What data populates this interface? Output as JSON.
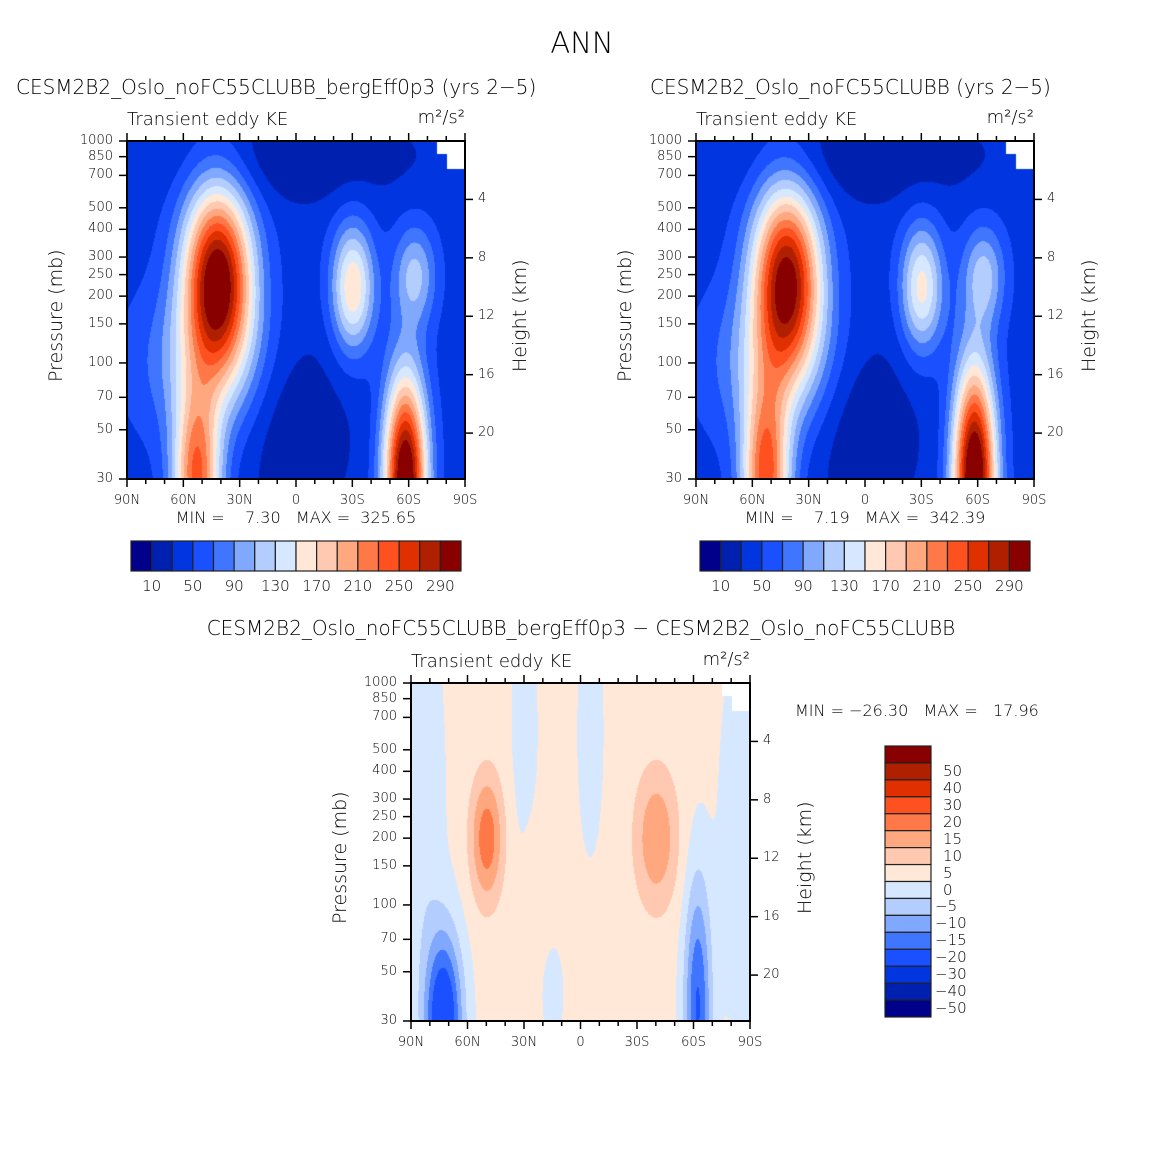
{
  "figure_title": "ANN",
  "chart_data": [
    {
      "type": "heatmap",
      "title": "CESM2B2_Oslo_noFC55CLUBB_bergEff0p3 (yrs 2−5)",
      "left_label": "Transient eddy KE",
      "units": "m²/s²",
      "ylabel": "Pressure (mb)",
      "y2label": "Height (km)",
      "x_ticks": [
        "90N",
        "60N",
        "30N",
        "0",
        "30S",
        "60S",
        "90S"
      ],
      "x_tick_values": [
        90,
        60,
        30,
        0,
        -30,
        -60,
        -90
      ],
      "y_ticks": [
        30,
        50,
        70,
        100,
        150,
        200,
        250,
        300,
        400,
        500,
        700,
        850,
        1000
      ],
      "y2_ticks": [
        4,
        8,
        12,
        16,
        20
      ],
      "ylim": [
        1000,
        30
      ],
      "xlim": [
        90,
        -90
      ],
      "min_max_text": "MIN =    7.30   MAX =  325.65",
      "levels": [
        10,
        30,
        50,
        70,
        90,
        110,
        130,
        150,
        170,
        190,
        210,
        230,
        250,
        270,
        290
      ],
      "colorbar_labels": [
        "10",
        "50",
        "90",
        "130",
        "170",
        "210",
        "250",
        "290"
      ],
      "colorbar_orientation": "horizontal",
      "base": 40,
      "features": [
        {
          "lat": 53,
          "p": 30,
          "amp": 190,
          "slat": 9,
          "slogp": 0.28
        },
        {
          "lat": -58,
          "p": 30,
          "amp": 290,
          "slat": 8,
          "slogp": 0.33
        },
        {
          "lat": 42,
          "p": 240,
          "amp": 270,
          "slat": 13,
          "slogp": 0.3
        },
        {
          "lat": -30,
          "p": 220,
          "amp": 130,
          "slat": 8,
          "slogp": 0.2
        },
        {
          "lat": -63,
          "p": 250,
          "amp": 75,
          "slat": 8,
          "slogp": 0.16
        },
        {
          "lat": 50,
          "p": 100,
          "amp": 55,
          "slat": 25,
          "slogp": 0.25
        },
        {
          "lat": 0,
          "p": 50,
          "amp": -30,
          "slat": 20,
          "slogp": 0.3
        },
        {
          "lat": 0,
          "p": 850,
          "amp": -28,
          "slat": 45,
          "slogp": 0.15
        }
      ]
    },
    {
      "type": "heatmap",
      "title": "CESM2B2_Oslo_noFC55CLUBB (yrs 2−5)",
      "left_label": "Transient eddy KE",
      "units": "m²/s²",
      "ylabel": "Pressure (mb)",
      "y2label": "Height (km)",
      "x_ticks": [
        "90N",
        "60N",
        "30N",
        "0",
        "30S",
        "60S",
        "90S"
      ],
      "x_tick_values": [
        90,
        60,
        30,
        0,
        -30,
        -60,
        -90
      ],
      "y_ticks": [
        30,
        50,
        70,
        100,
        150,
        200,
        250,
        300,
        400,
        500,
        700,
        850,
        1000
      ],
      "y2_ticks": [
        4,
        8,
        12,
        16,
        20
      ],
      "ylim": [
        1000,
        30
      ],
      "xlim": [
        90,
        -90
      ],
      "min_max_text": "MIN =    7.19   MAX =  342.39",
      "levels": [
        10,
        30,
        50,
        70,
        90,
        110,
        130,
        150,
        170,
        190,
        210,
        230,
        250,
        270,
        290
      ],
      "colorbar_labels": [
        "10",
        "50",
        "90",
        "130",
        "170",
        "210",
        "250",
        "290"
      ],
      "colorbar_orientation": "horizontal",
      "base": 40,
      "features": [
        {
          "lat": 53,
          "p": 30,
          "amp": 200,
          "slat": 9,
          "slogp": 0.3
        },
        {
          "lat": -58,
          "p": 30,
          "amp": 300,
          "slat": 8,
          "slogp": 0.36
        },
        {
          "lat": 42,
          "p": 240,
          "amp": 255,
          "slat": 13,
          "slogp": 0.3
        },
        {
          "lat": -30,
          "p": 220,
          "amp": 118,
          "slat": 8,
          "slogp": 0.2
        },
        {
          "lat": -63,
          "p": 250,
          "amp": 75,
          "slat": 8,
          "slogp": 0.16
        },
        {
          "lat": 50,
          "p": 100,
          "amp": 55,
          "slat": 25,
          "slogp": 0.25
        },
        {
          "lat": 0,
          "p": 50,
          "amp": -30,
          "slat": 20,
          "slogp": 0.3
        },
        {
          "lat": 0,
          "p": 850,
          "amp": -28,
          "slat": 45,
          "slogp": 0.15
        }
      ]
    },
    {
      "type": "heatmap",
      "title": "CESM2B2_Oslo_noFC55CLUBB_bergEff0p3 − CESM2B2_Oslo_noFC55CLUBB",
      "left_label": "Transient eddy KE",
      "units": "m²/s²",
      "ylabel": "Pressure (mb)",
      "y2label": "Height (km)",
      "x_ticks": [
        "90N",
        "60N",
        "30N",
        "0",
        "30S",
        "60S",
        "90S"
      ],
      "x_tick_values": [
        90,
        60,
        30,
        0,
        -30,
        -60,
        -90
      ],
      "y_ticks": [
        30,
        50,
        70,
        100,
        150,
        200,
        250,
        300,
        400,
        500,
        700,
        850,
        1000
      ],
      "y2_ticks": [
        4,
        8,
        12,
        16,
        20
      ],
      "ylim": [
        1000,
        30
      ],
      "xlim": [
        90,
        -90
      ],
      "min_max_text": "MIN = −26.30   MAX =   17.96",
      "levels": [
        -50,
        -40,
        -30,
        -20,
        -15,
        -10,
        -5,
        0,
        5,
        10,
        15,
        20,
        30,
        40,
        50
      ],
      "colorbar_labels": [
        "50",
        "40",
        "30",
        "20",
        "15",
        "10",
        "5",
        "0",
        "−5",
        "−10",
        "−15",
        "−20",
        "−30",
        "−40",
        "−50"
      ],
      "colorbar_orientation": "vertical",
      "base": 1.5,
      "features": [
        {
          "lat": 73,
          "p": 30,
          "amp": -30,
          "slat": 7,
          "slogp": 0.28
        },
        {
          "lat": -62,
          "p": 35,
          "amp": -22,
          "slat": 5,
          "slogp": 0.4
        },
        {
          "lat": 50,
          "p": 200,
          "amp": 17,
          "slat": 6,
          "slogp": 0.2
        },
        {
          "lat": -40,
          "p": 200,
          "amp": 13,
          "slat": 8,
          "slogp": 0.22
        },
        {
          "lat": 25,
          "p": 120,
          "amp": 3,
          "slat": 4,
          "slogp": 0.2
        },
        {
          "lat": 85,
          "p": 300,
          "amp": -6,
          "slat": 8,
          "slogp": 0.6
        },
        {
          "lat": -85,
          "p": 200,
          "amp": -5,
          "slat": 8,
          "slogp": 0.6
        },
        {
          "lat": 30,
          "p": 600,
          "amp": -4,
          "slat": 5,
          "slogp": 0.4
        },
        {
          "lat": -5,
          "p": 600,
          "amp": -4,
          "slat": 5,
          "slogp": 0.4
        },
        {
          "lat": 15,
          "p": 40,
          "amp": -4,
          "slat": 4,
          "slogp": 0.15
        }
      ]
    }
  ],
  "colors": [
    "#00008b",
    "#0020b0",
    "#0035e0",
    "#1a50ff",
    "#3f75ff",
    "#80a8ff",
    "#b4cdff",
    "#d6e8ff",
    "#ffe8d8",
    "#ffc8b0",
    "#ffa880",
    "#ff7848",
    "#ff5020",
    "#e03000",
    "#b02000",
    "#880000"
  ]
}
